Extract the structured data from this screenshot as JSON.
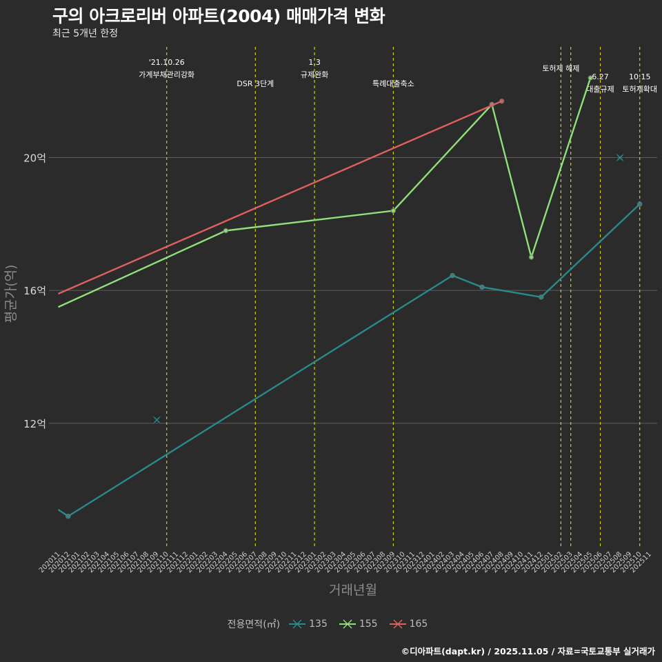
{
  "header": {
    "title": "구의 아크로리버 아파트(2004) 매매가격 변화",
    "subtitle": "최근 5개년 한정"
  },
  "caption": "©디아파트(dapt.kr) / 2025.11.05 / 자료=국토교통부 실거래가",
  "legend": {
    "title": "전용면적(㎡)",
    "items": [
      {
        "label": "135",
        "color": "#2a8a8a"
      },
      {
        "label": "155",
        "color": "#90e07a"
      },
      {
        "label": "165",
        "color": "#e06060"
      }
    ]
  },
  "chart_data": {
    "type": "line",
    "xlabel": "거래년월",
    "ylabel": "평균가(억)",
    "categories": [
      "202011",
      "202012",
      "202101",
      "202102",
      "202103",
      "202104",
      "202105",
      "202106",
      "202107",
      "202108",
      "202109",
      "202110",
      "202111",
      "202112",
      "202201",
      "202202",
      "202203",
      "202204",
      "202205",
      "202206",
      "202207",
      "202208",
      "202209",
      "202210",
      "202211",
      "202212",
      "202301",
      "202302",
      "202303",
      "202304",
      "202305",
      "202306",
      "202307",
      "202308",
      "202309",
      "202310",
      "202311",
      "202312",
      "202401",
      "202402",
      "202403",
      "202404",
      "202405",
      "202406",
      "202407",
      "202408",
      "202409",
      "202410",
      "202411",
      "202412",
      "202501",
      "202502",
      "202503",
      "202504",
      "202505",
      "202506",
      "202507",
      "202508",
      "202509",
      "202510",
      "202511"
    ],
    "ylim": [
      8.3,
      23.5
    ],
    "yticks": [
      12,
      16,
      20
    ],
    "ytick_labels": [
      "12억",
      "16억",
      "20억"
    ],
    "series": [
      {
        "name": "135",
        "color": "#2a8a8a",
        "points": [
          [
            "202011",
            9.4
          ],
          [
            "202012",
            9.2
          ],
          [
            "202403",
            16.45
          ],
          [
            "202406",
            16.1
          ],
          [
            "202412",
            15.8
          ],
          [
            "202510",
            18.6
          ]
        ],
        "markers": [
          [
            "202012",
            9.2
          ],
          [
            "202403",
            16.45
          ],
          [
            "202406",
            16.1
          ],
          [
            "202412",
            15.8
          ],
          [
            "202510",
            18.6
          ]
        ]
      },
      {
        "name": "155",
        "color": "#90e07a",
        "points": [
          [
            "202011",
            15.5
          ],
          [
            "202204",
            17.8
          ],
          [
            "202309",
            18.4
          ],
          [
            "202407",
            21.6
          ],
          [
            "202411",
            17.0
          ],
          [
            "202505",
            22.4
          ]
        ],
        "markers": [
          [
            "202204",
            17.8
          ],
          [
            "202309",
            18.4
          ],
          [
            "202407",
            21.6
          ],
          [
            "202411",
            17.0
          ],
          [
            "202505",
            22.4
          ]
        ]
      },
      {
        "name": "165",
        "color": "#e06060",
        "points": [
          [
            "202011",
            15.9
          ],
          [
            "202408",
            21.7
          ]
        ],
        "markers": [
          [
            "202407",
            21.6
          ],
          [
            "202408",
            21.7
          ]
        ]
      }
    ],
    "cross_markers": [
      {
        "series": "135",
        "x": "202109",
        "y": 12.1
      },
      {
        "series": "135",
        "x": "202508",
        "y": 20.0
      }
    ],
    "events": [
      {
        "x": "202110",
        "lines": [
          "'21.10.26",
          "가계부채관리강화"
        ],
        "level": 1
      },
      {
        "x": "202207",
        "lines": [
          "DSR 3단계"
        ],
        "level": 2
      },
      {
        "x": "202301",
        "lines": [
          "1.3",
          "규제완화"
        ],
        "level": 1
      },
      {
        "x": "202309",
        "lines": [
          "특례대출축소"
        ],
        "level": 2
      },
      {
        "x": "202502",
        "lines": [
          "토허제 해제"
        ],
        "level": 0
      },
      {
        "x": "202503",
        "lines": [],
        "level": 0
      },
      {
        "x": "202506",
        "lines": [
          "6.27",
          "대출규제"
        ],
        "level": 3
      },
      {
        "x": "202510",
        "lines": [
          "10.15",
          "토허제확대"
        ],
        "level": 3
      }
    ]
  }
}
